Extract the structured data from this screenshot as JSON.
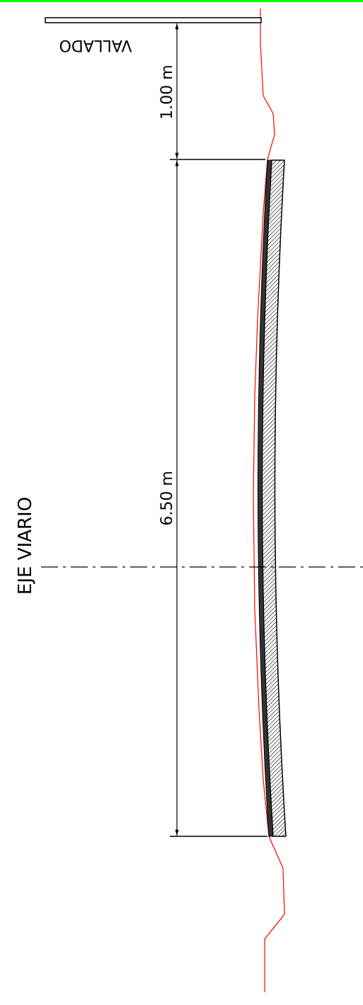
{
  "drawing": {
    "labels": {
      "fence": "VALLADO",
      "axis": "EJE VIARIO",
      "dim_top": "1.00 m",
      "dim_main": "6.50 m"
    },
    "colors": {
      "top_border": "#00ff00",
      "terrain": "#ff0000",
      "lines": "#000000",
      "background": "#ffffff"
    }
  }
}
